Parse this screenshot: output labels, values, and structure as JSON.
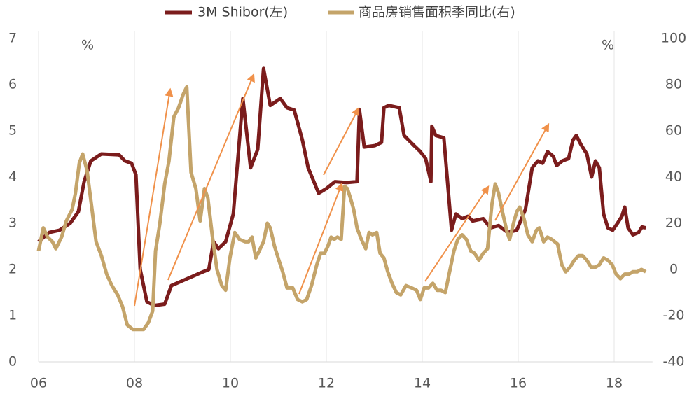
{
  "chart_data": {
    "type": "line",
    "y_unit_label": "%",
    "y2_unit_label": "%",
    "xlim": [
      2006,
      2018.8
    ],
    "xticks": [
      {
        "value": 2006,
        "label": "06"
      },
      {
        "value": 2008,
        "label": "08"
      },
      {
        "value": 2010,
        "label": "10"
      },
      {
        "value": 2012,
        "label": "12"
      },
      {
        "value": 2014,
        "label": "14"
      },
      {
        "value": 2016,
        "label": "16"
      },
      {
        "value": 2018,
        "label": "18"
      }
    ],
    "ylim": [
      0,
      7
    ],
    "yticks": [
      0,
      1,
      2,
      3,
      4,
      5,
      6,
      7
    ],
    "y2lim": [
      -40,
      100
    ],
    "y2ticks": [
      -40,
      -20,
      0,
      20,
      40,
      60,
      80,
      100
    ],
    "grid": true,
    "series": [
      {
        "name": "3M Shibor(左)",
        "color": "#7b1c1c",
        "axis": "y",
        "x": [
          2006.0,
          2006.22,
          2006.44,
          2006.66,
          2006.83,
          2006.95,
          2007.09,
          2007.31,
          2007.68,
          2007.8,
          2007.94,
          2008.03,
          2008.12,
          2008.26,
          2008.41,
          2008.63,
          2008.77,
          2008.99,
          2009.21,
          2009.36,
          2009.55,
          2009.65,
          2009.75,
          2009.9,
          2010.06,
          2010.26,
          2010.42,
          2010.57,
          2010.69,
          2010.83,
          2011.04,
          2011.18,
          2011.33,
          2011.5,
          2011.62,
          2011.84,
          2012.0,
          2012.18,
          2012.42,
          2012.64,
          2012.69,
          2012.79,
          2013.01,
          2013.15,
          2013.2,
          2013.3,
          2013.52,
          2013.62,
          2013.81,
          2013.96,
          2014.07,
          2014.18,
          2014.2,
          2014.28,
          2014.45,
          2014.61,
          2014.7,
          2014.83,
          2014.95,
          2015.05,
          2015.27,
          2015.42,
          2015.59,
          2015.78,
          2015.97,
          2016.15,
          2016.29,
          2016.41,
          2016.51,
          2016.61,
          2016.73,
          2016.8,
          2016.92,
          2017.05,
          2017.14,
          2017.21,
          2017.31,
          2017.43,
          2017.53,
          2017.61,
          2017.69,
          2017.78,
          2017.87,
          2017.97,
          2018.07,
          2018.16,
          2018.22,
          2018.29,
          2018.39,
          2018.51,
          2018.58,
          2018.66
        ],
        "values": [
          2.6,
          2.8,
          2.85,
          3.0,
          3.25,
          3.9,
          4.35,
          4.5,
          4.48,
          4.35,
          4.3,
          4.05,
          2.0,
          1.3,
          1.22,
          1.25,
          1.65,
          1.75,
          1.85,
          1.92,
          2.0,
          2.6,
          2.45,
          2.6,
          3.2,
          5.7,
          4.2,
          4.6,
          6.35,
          5.55,
          5.7,
          5.5,
          5.45,
          4.8,
          4.2,
          3.65,
          3.75,
          3.9,
          3.88,
          3.9,
          5.45,
          4.65,
          4.68,
          4.75,
          5.5,
          5.55,
          5.5,
          4.9,
          4.7,
          4.55,
          4.4,
          3.9,
          5.1,
          4.9,
          4.85,
          2.85,
          3.2,
          3.1,
          3.15,
          3.05,
          3.1,
          2.9,
          2.95,
          2.8,
          2.85,
          3.3,
          4.2,
          4.35,
          4.3,
          4.55,
          4.45,
          4.25,
          4.35,
          4.4,
          4.8,
          4.9,
          4.7,
          4.5,
          4.0,
          4.35,
          4.2,
          3.2,
          2.9,
          2.85,
          3.0,
          3.15,
          3.35,
          2.9,
          2.75,
          2.8,
          2.92,
          2.9
        ]
      },
      {
        "name": "商品房销售面积季同比(右)",
        "color": "#c4a46a",
        "axis": "y2",
        "x": [
          2006.0,
          2006.1,
          2006.19,
          2006.29,
          2006.36,
          2006.48,
          2006.58,
          2006.7,
          2006.77,
          2006.85,
          2006.92,
          2007.01,
          2007.09,
          2007.2,
          2007.31,
          2007.42,
          2007.53,
          2007.65,
          2007.75,
          2007.85,
          2007.97,
          2008.09,
          2008.19,
          2008.29,
          2008.38,
          2008.44,
          2008.53,
          2008.63,
          2008.72,
          2008.82,
          2008.92,
          2009.02,
          2009.09,
          2009.18,
          2009.28,
          2009.37,
          2009.46,
          2009.53,
          2009.62,
          2009.72,
          2009.82,
          2009.9,
          2009.99,
          2010.09,
          2010.19,
          2010.31,
          2010.38,
          2010.45,
          2010.53,
          2010.6,
          2010.69,
          2010.77,
          2010.83,
          2010.92,
          2011.01,
          2011.09,
          2011.18,
          2011.3,
          2011.4,
          2011.5,
          2011.59,
          2011.69,
          2011.8,
          2011.88,
          2011.96,
          2012.03,
          2012.1,
          2012.16,
          2012.23,
          2012.31,
          2012.38,
          2012.44,
          2012.5,
          2012.57,
          2012.64,
          2012.73,
          2012.82,
          2012.89,
          2012.96,
          2013.05,
          2013.12,
          2013.2,
          2013.28,
          2013.37,
          2013.46,
          2013.55,
          2013.66,
          2013.78,
          2013.88,
          2013.96,
          2014.04,
          2014.13,
          2014.22,
          2014.31,
          2014.39,
          2014.48,
          2014.57,
          2014.66,
          2014.74,
          2014.83,
          2014.92,
          2015.01,
          2015.09,
          2015.18,
          2015.27,
          2015.36,
          2015.45,
          2015.52,
          2015.59,
          2015.68,
          2015.77,
          2015.82,
          2015.9,
          2015.97,
          2016.03,
          2016.12,
          2016.2,
          2016.29,
          2016.38,
          2016.44,
          2016.53,
          2016.61,
          2016.7,
          2016.82,
          2016.91,
          2016.99,
          2017.08,
          2017.17,
          2017.26,
          2017.34,
          2017.43,
          2017.52,
          2017.61,
          2017.69,
          2017.78,
          2017.87,
          2017.96,
          2018.04,
          2018.13,
          2018.22,
          2018.31,
          2018.39,
          2018.48,
          2018.57,
          2018.66
        ],
        "values": [
          8,
          18,
          14,
          12,
          9,
          14,
          21,
          26,
          33,
          46,
          50,
          43,
          30,
          12,
          6,
          -2,
          -7,
          -11,
          -16,
          -24,
          -26,
          -26,
          -26,
          -23,
          -18,
          8,
          20,
          37,
          47,
          66,
          70,
          76,
          79,
          42,
          35,
          21,
          35,
          31,
          15,
          0,
          -7,
          -9,
          5,
          16,
          13,
          12,
          12,
          14,
          5,
          8,
          12,
          20,
          18,
          10,
          4,
          -1,
          -8,
          -8,
          -13,
          -14,
          -13,
          -7,
          2,
          7,
          7,
          10,
          14,
          13,
          14,
          13,
          36,
          35,
          31,
          26,
          18,
          13,
          9,
          16,
          15,
          16,
          7,
          5,
          -1,
          -6,
          -10,
          -11,
          -7,
          -8,
          -9,
          -13,
          -8,
          -8,
          -6,
          -9,
          -9,
          -10,
          -1,
          8,
          13,
          15,
          13,
          8,
          7,
          4,
          7,
          9,
          28,
          37,
          33,
          24,
          16,
          13,
          20,
          25,
          27,
          22,
          15,
          12,
          17,
          18,
          12,
          14,
          13,
          11,
          2,
          -1,
          1,
          4,
          6,
          6,
          4,
          1,
          1,
          2,
          5,
          4,
          2,
          -2,
          -4,
          -2,
          -2,
          -1,
          -1,
          0,
          -1
        ]
      }
    ]
  }
}
